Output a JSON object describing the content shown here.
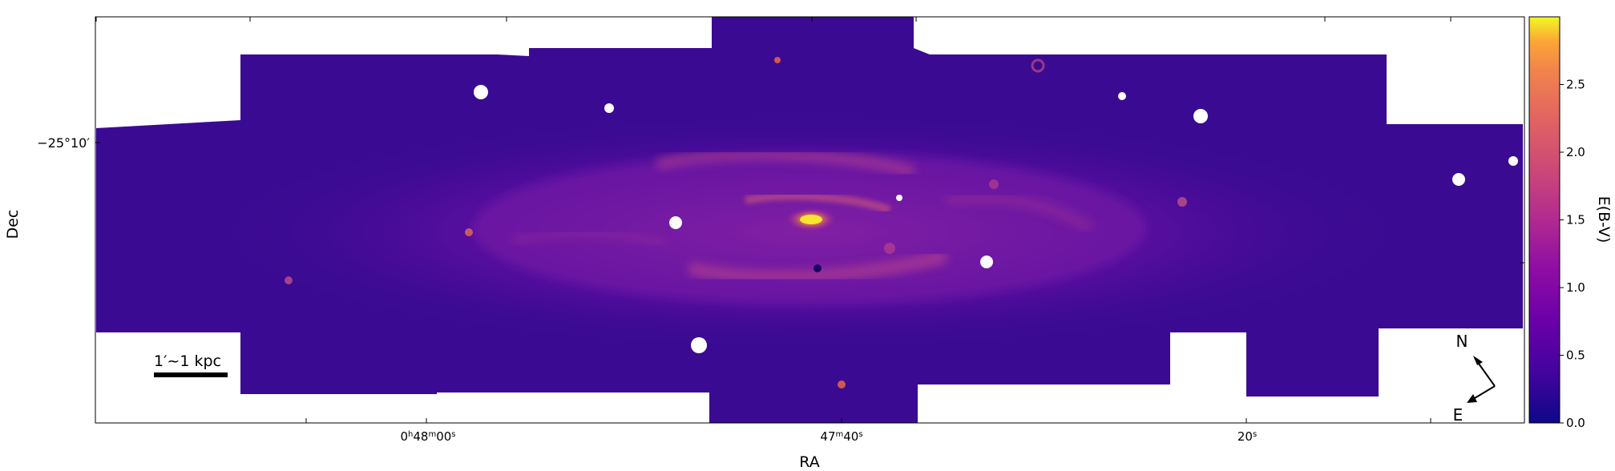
{
  "figure": {
    "axes": {
      "xlabel": "RA",
      "ylabel": "Dec",
      "x_ticks": [
        {
          "label_h": "0",
          "sup_h": "h",
          "label_m": "48",
          "sup_m": "m",
          "label_s": "00",
          "sup_s": "s"
        },
        {
          "label_m": "47",
          "sup_m": "m",
          "label_s": "40",
          "sup_s": "s"
        },
        {
          "label_s": "20",
          "sup_s": "s"
        }
      ],
      "y_ticks": [
        {
          "label": "−25°10′"
        }
      ]
    },
    "colorbar": {
      "label": "E(B-V)",
      "ticks": [
        "0.0",
        "0.5",
        "1.0",
        "1.5",
        "2.0",
        "2.5"
      ],
      "range": [
        0.0,
        3.0
      ],
      "colormap": "plasma"
    },
    "scalebar": {
      "label": "1′~1 kpc"
    },
    "compass": {
      "north": "N",
      "east": "E"
    },
    "colors": {
      "background_low": "#2a0a8e",
      "mid": "#6a10a6",
      "high": "#d9467a",
      "peak": "#f9e530"
    }
  }
}
